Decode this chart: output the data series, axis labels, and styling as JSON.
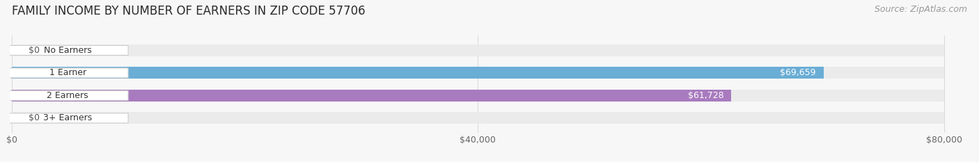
{
  "title": "FAMILY INCOME BY NUMBER OF EARNERS IN ZIP CODE 57706",
  "source": "Source: ZipAtlas.com",
  "categories": [
    "No Earners",
    "1 Earner",
    "2 Earners",
    "3+ Earners"
  ],
  "values": [
    0,
    69659,
    61728,
    0
  ],
  "labels": [
    "$0",
    "$69,659",
    "$61,728",
    "$0"
  ],
  "bar_colors": [
    "#f4a0a0",
    "#6aadd5",
    "#a87bbf",
    "#6ec9c9"
  ],
  "bar_bg_color": "#ebebeb",
  "label_colors": [
    "#555555",
    "#ffffff",
    "#ffffff",
    "#555555"
  ],
  "x_max": 80000,
  "x_ticks": [
    0,
    40000,
    80000
  ],
  "x_tick_labels": [
    "$0",
    "$40,000",
    "$80,000"
  ],
  "background_color": "#f7f7f7",
  "title_fontsize": 12,
  "source_fontsize": 9,
  "tick_fontsize": 9,
  "bar_height": 0.52,
  "bar_label_fontsize": 9,
  "cat_label_fontsize": 9,
  "cat_box_color": "#ffffff",
  "cat_text_color": "#333333"
}
